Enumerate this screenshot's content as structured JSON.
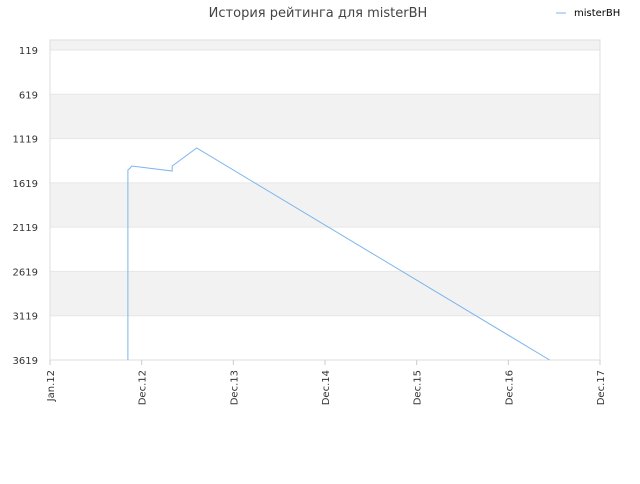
{
  "chart_data": {
    "type": "line",
    "title": "История рейтинга для misterBH",
    "series": [
      {
        "name": "misterBH",
        "color": "#7cb5ec",
        "x": [
          10.2,
          10.2,
          10.5,
          10.7,
          16.0,
          16.0,
          19.2,
          65.4
        ],
        "values": [
          3619,
          1474,
          1451,
          1429,
          1485,
          1429,
          1225,
          3619
        ]
      }
    ],
    "xlim": [
      0,
      72
    ],
    "xticks": [
      {
        "value": 0,
        "label": "Jan.12"
      },
      {
        "value": 12,
        "label": "Dec.12"
      },
      {
        "value": 24,
        "label": "Dec.13"
      },
      {
        "value": 36,
        "label": "Dec.14"
      },
      {
        "value": 48,
        "label": "Dec.15"
      },
      {
        "value": 60,
        "label": "Dec.16"
      },
      {
        "value": 72,
        "label": "Dec.17"
      }
    ],
    "ylim": [
      3619,
      6
    ],
    "yticks": [
      119,
      619,
      1119,
      1619,
      2119,
      2619,
      3119,
      3619
    ],
    "grid": "bands",
    "legend": "top-right"
  }
}
